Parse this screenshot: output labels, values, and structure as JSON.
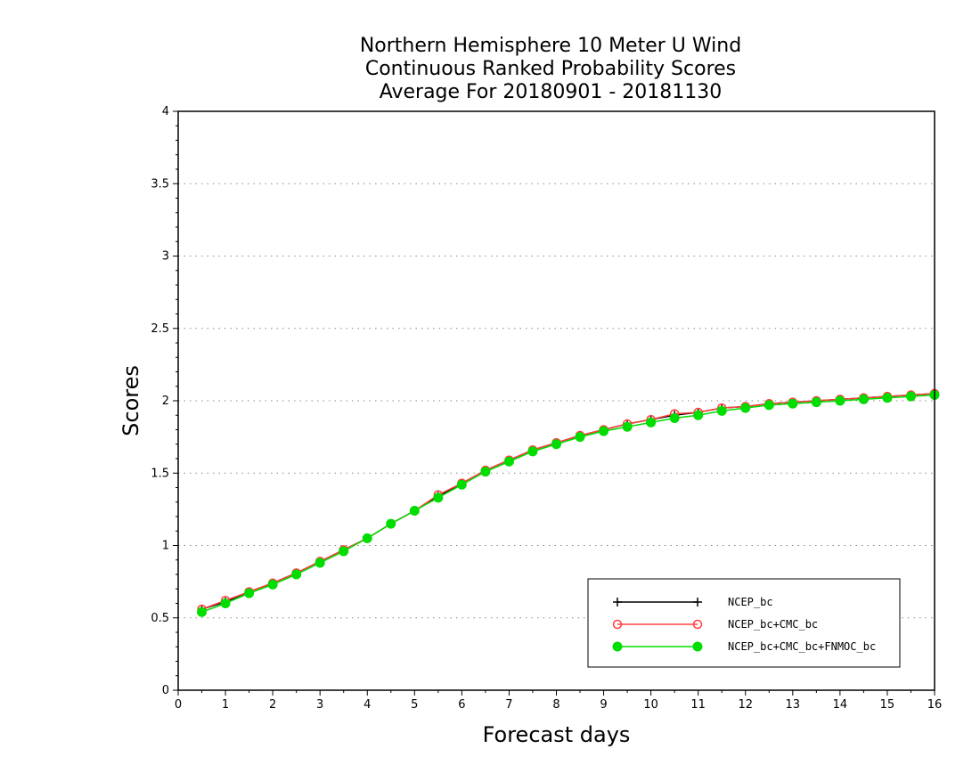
{
  "chart_data": {
    "type": "line",
    "title": [
      "Northern Hemisphere 10 Meter U Wind",
      "Continuous Ranked Probability Scores",
      "Average For 20180901 - 20181130"
    ],
    "xlabel": "Forecast days",
    "ylabel": "Scores",
    "xlim": [
      0,
      16
    ],
    "ylim": [
      0,
      4
    ],
    "xticks": [
      "0",
      "1",
      "2",
      "3",
      "4",
      "5",
      "6",
      "7",
      "8",
      "9",
      "10",
      "11",
      "12",
      "13",
      "14",
      "15",
      "16"
    ],
    "yticks": [
      "0",
      "0.5",
      "1",
      "1.5",
      "2",
      "2.5",
      "3",
      "3.5",
      "4"
    ],
    "grid": "horizontal dotted",
    "legend_position": "bottom-right",
    "x": [
      0.5,
      1,
      1.5,
      2,
      2.5,
      3,
      3.5,
      4,
      4.5,
      5,
      5.5,
      6,
      6.5,
      7,
      7.5,
      8,
      8.5,
      9,
      9.5,
      10,
      10.5,
      11,
      11.5,
      12,
      12.5,
      13,
      13.5,
      14,
      14.5,
      15,
      15.5,
      16
    ],
    "series": [
      {
        "name": "NCEP_bc",
        "color": "#000000",
        "marker": "plus",
        "values": [
          0.56,
          0.61,
          0.68,
          0.74,
          0.81,
          0.89,
          0.97,
          1.05,
          1.15,
          1.24,
          1.34,
          1.43,
          1.52,
          1.59,
          1.66,
          1.71,
          1.76,
          1.8,
          1.84,
          1.87,
          1.9,
          1.92,
          1.95,
          1.96,
          1.98,
          1.99,
          2.0,
          2.01,
          2.02,
          2.03,
          2.04,
          2.05
        ]
      },
      {
        "name": "NCEP_bc+CMC_bc",
        "color": "#ff4040",
        "marker": "open-circle",
        "values": [
          0.56,
          0.62,
          0.68,
          0.74,
          0.81,
          0.89,
          0.97,
          1.05,
          1.15,
          1.24,
          1.35,
          1.43,
          1.52,
          1.59,
          1.66,
          1.71,
          1.76,
          1.8,
          1.84,
          1.87,
          1.91,
          1.92,
          1.95,
          1.96,
          1.98,
          1.99,
          2.0,
          2.01,
          2.02,
          2.03,
          2.04,
          2.05
        ]
      },
      {
        "name": "NCEP_bc+CMC_bc+FNMOC_bc",
        "color": "#00dd00",
        "marker": "filled-circle",
        "values": [
          0.54,
          0.6,
          0.67,
          0.73,
          0.8,
          0.88,
          0.96,
          1.05,
          1.15,
          1.24,
          1.33,
          1.42,
          1.51,
          1.58,
          1.65,
          1.7,
          1.75,
          1.79,
          1.82,
          1.85,
          1.88,
          1.9,
          1.93,
          1.95,
          1.97,
          1.98,
          1.99,
          2.0,
          2.01,
          2.02,
          2.03,
          2.04
        ]
      }
    ]
  }
}
